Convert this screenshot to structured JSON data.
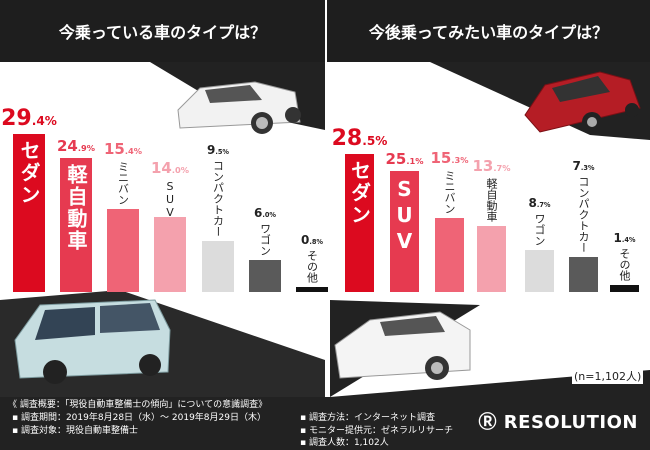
{
  "chart_data": [
    {
      "type": "bar",
      "title": "今乗っている車のタイプは？",
      "categories": [
        "セダン",
        "軽自動車",
        "ミニバン",
        "SUV",
        "コンパクトカー",
        "ワゴン",
        "その他"
      ],
      "values": [
        29.4,
        24.9,
        15.4,
        14.0,
        9.5,
        6.0,
        0.8
      ],
      "colors": [
        "#dc0a1f",
        "#e63a50",
        "#ef6476",
        "#f4a1ad",
        "#dcdcdc",
        "#5a5a5a",
        "#111111"
      ],
      "unit": "%"
    },
    {
      "type": "bar",
      "title": "今後乗ってみたい車のタイプは？",
      "categories": [
        "セダン",
        "SUV",
        "ミニバン",
        "軽自動車",
        "ワゴン",
        "コンパクトカー",
        "その他"
      ],
      "values": [
        28.5,
        25.1,
        15.3,
        13.7,
        8.7,
        7.3,
        1.4
      ],
      "colors": [
        "#dc0a1f",
        "#e63a50",
        "#ef6476",
        "#f4a1ad",
        "#dcdcdc",
        "#5a5a5a",
        "#111111"
      ],
      "unit": "%",
      "note": "(n=1,102人)"
    }
  ],
  "footer": {
    "heading": "《 調査概要：「現役自動車整備士の傾向」についての意識調査》",
    "period": "▪ 調査期間：2019年8月28日（水）～ 2019年8月29日（木）",
    "target": "▪ 調査対象：現役自動車整備士",
    "method": "▪ 調査方法：インターネット調査",
    "provider": "▪ モニター提供元：ゼネラルリサーチ",
    "count": "▪ 調査人数：1,102人",
    "logo": "RESOLUTION"
  }
}
